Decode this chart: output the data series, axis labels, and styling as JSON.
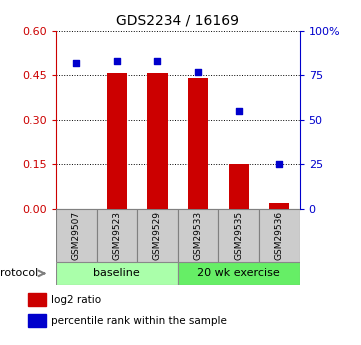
{
  "title": "GDS2234 / 16169",
  "samples": [
    "GSM29507",
    "GSM29523",
    "GSM29529",
    "GSM29533",
    "GSM29535",
    "GSM29536"
  ],
  "log2_ratio": [
    0.0,
    0.46,
    0.46,
    0.44,
    0.15,
    0.02
  ],
  "percentile_rank": [
    82,
    83,
    83,
    77,
    55,
    25
  ],
  "groups": [
    {
      "label": "baseline",
      "start": 0,
      "end": 3,
      "color": "#aaffaa"
    },
    {
      "label": "20 wk exercise",
      "start": 3,
      "end": 6,
      "color": "#66ee66"
    }
  ],
  "left_yaxis": {
    "min": 0,
    "max": 0.6,
    "ticks": [
      0,
      0.15,
      0.3,
      0.45,
      0.6
    ],
    "color": "#cc0000"
  },
  "right_yaxis": {
    "min": 0,
    "max": 100,
    "ticks": [
      0,
      25,
      50,
      75,
      100
    ],
    "color": "#0000cc"
  },
  "bar_color": "#cc0000",
  "dot_color": "#0000cc",
  "bar_width": 0.5,
  "legend": [
    {
      "label": "log2 ratio",
      "color": "#cc0000"
    },
    {
      "label": "percentile rank within the sample",
      "color": "#0000cc"
    }
  ]
}
